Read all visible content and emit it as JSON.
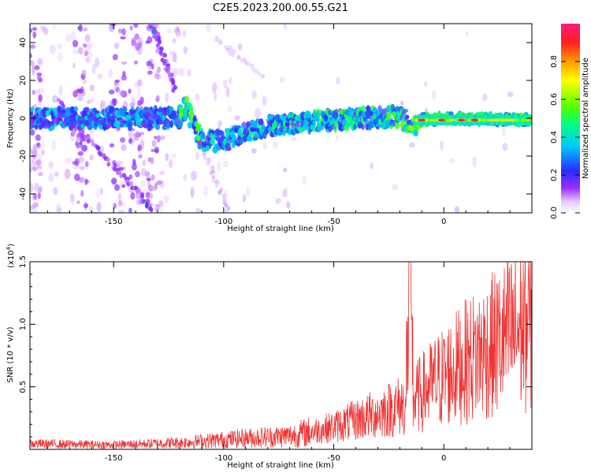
{
  "title": "C2E5.2023.200.00.55.G21",
  "chart_data": [
    {
      "type": "heatmap",
      "xlabel": "Height of straight line (km)",
      "ylabel": "Frequency (Hz)",
      "xlim": [
        -188,
        40
      ],
      "ylim": [
        -50,
        50
      ],
      "x_ticks": [
        -150,
        -100,
        -50,
        0
      ],
      "y_ticks": [
        -40,
        -20,
        0,
        20,
        40
      ],
      "colorbar": {
        "label": "Normalized spectral amplitude",
        "range": [
          0,
          1
        ],
        "ticks": [
          "0.0",
          "0.2",
          "0.4",
          "0.6",
          "0.8"
        ],
        "colors": [
          "#ffffff",
          "#e6c8ff",
          "#9b30ff",
          "#2a2aff",
          "#00c8ff",
          "#00ff80",
          "#55ff00",
          "#ffff00",
          "#ff9900",
          "#ff2020",
          "#ff1a7a"
        ]
      },
      "ridge": [
        {
          "x": -188,
          "f": 0
        },
        {
          "x": -120,
          "f": 0
        },
        {
          "x": -117,
          "f": 6
        },
        {
          "x": -110,
          "f": -12
        },
        {
          "x": -100,
          "f": -12
        },
        {
          "x": -80,
          "f": -4
        },
        {
          "x": -60,
          "f": -2
        },
        {
          "x": -40,
          "f": 0
        },
        {
          "x": -20,
          "f": 1
        },
        {
          "x": -15,
          "f": -4
        },
        {
          "x": -10,
          "f": -1
        },
        {
          "x": 0,
          "f": 0
        },
        {
          "x": 40,
          "f": -1
        }
      ],
      "bright_segment": {
        "x_start": -13,
        "x_end": 40,
        "f": -1
      }
    },
    {
      "type": "line",
      "xlabel": "Height of straight line (km)",
      "ylabel": "SNR (10 * v/v)",
      "y_exponent_label": "(x10",
      "y_exponent_power": "4",
      "y_exponent_close": ")",
      "xlim": [
        -188,
        40
      ],
      "ylim": [
        0,
        1.5
      ],
      "x_ticks": [
        -150,
        -100,
        -50,
        0
      ],
      "y_ticks": [
        "0.5",
        "1.0",
        "1.5"
      ],
      "color": "#ee3333",
      "trend": [
        {
          "x": -188,
          "y": 0.05
        },
        {
          "x": -150,
          "y": 0.04
        },
        {
          "x": -120,
          "y": 0.06
        },
        {
          "x": -90,
          "y": 0.1
        },
        {
          "x": -70,
          "y": 0.12
        },
        {
          "x": -50,
          "y": 0.2
        },
        {
          "x": -30,
          "y": 0.32
        },
        {
          "x": -15,
          "y": 0.42
        },
        {
          "x": -5,
          "y": 0.58
        },
        {
          "x": 10,
          "y": 0.78
        },
        {
          "x": 25,
          "y": 0.95
        },
        {
          "x": 40,
          "y": 1.15
        }
      ],
      "spike": {
        "x": -15.5,
        "y": 1.5
      }
    }
  ]
}
